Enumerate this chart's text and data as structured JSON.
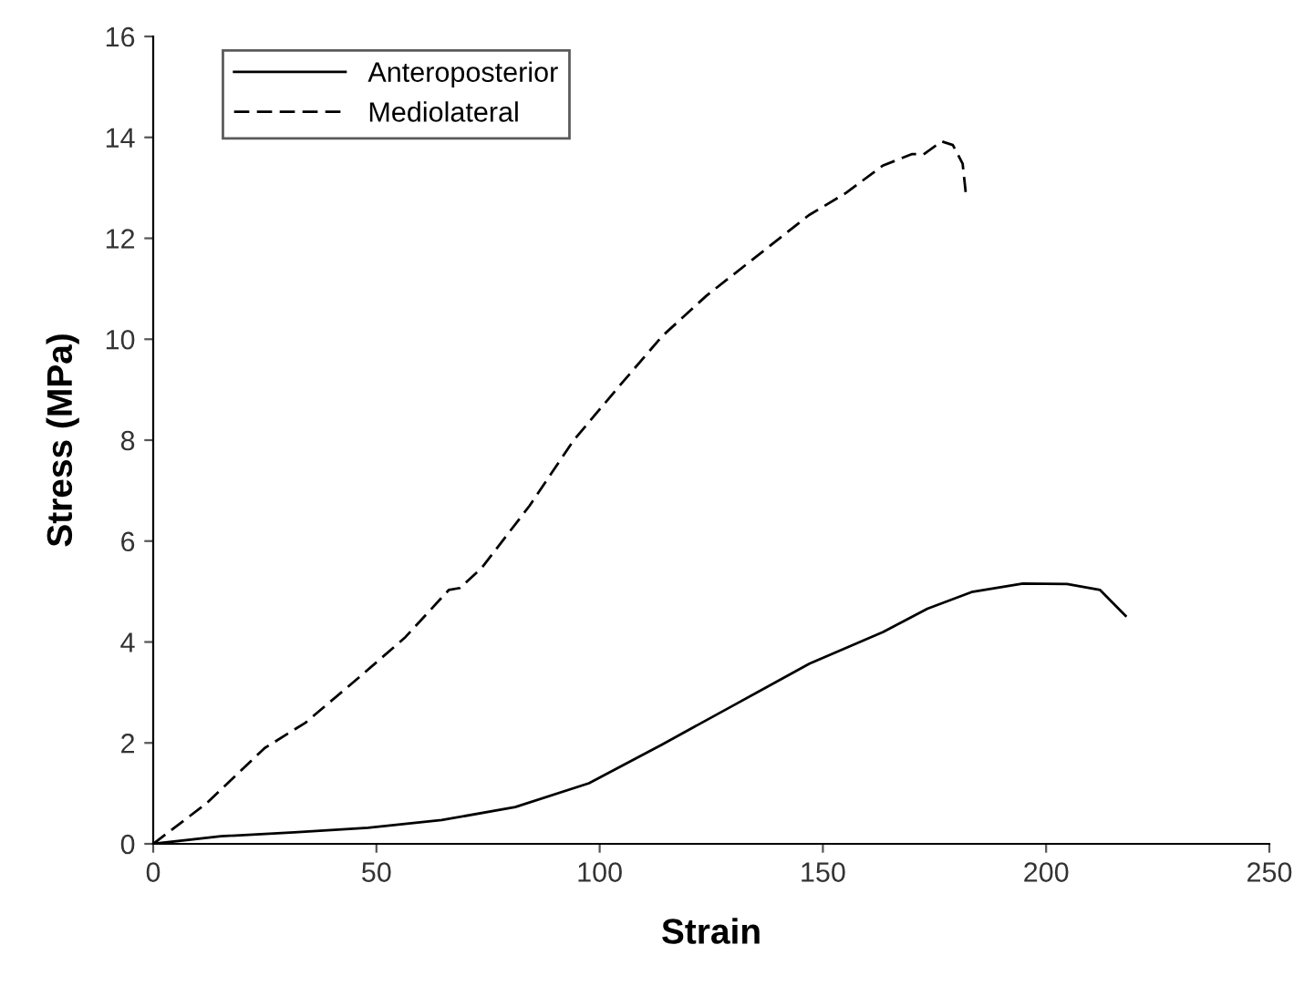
{
  "chart_data": {
    "type": "line",
    "xlabel": "Strain",
    "ylabel": "Stress (MPa)",
    "xlim": [
      0,
      250
    ],
    "xticks": [
      0,
      50,
      100,
      150,
      200,
      250
    ],
    "ylim": [
      0,
      16
    ],
    "yticks": [
      0,
      2,
      4,
      6,
      8,
      10,
      12,
      14,
      16
    ],
    "grid": false,
    "legend": "top left",
    "marker": "none",
    "series": [
      {
        "name": "Anteroposterior",
        "color": "#000000",
        "line_style": "solid",
        "x": [
          0,
          15.2,
          31.6,
          48.1,
          64.6,
          81.1,
          97.6,
          114,
          130.5,
          147,
          163.5,
          173.4,
          183.3,
          194.8,
          204.7,
          212.1,
          217.8
        ],
        "values": [
          0,
          0.15,
          0.23,
          0.32,
          0.47,
          0.73,
          1.2,
          1.97,
          2.77,
          3.57,
          4.2,
          4.66,
          4.99,
          5.16,
          5.15,
          5.03,
          4.52
        ]
      },
      {
        "name": "Mediolateral",
        "color": "#000000",
        "line_style": "dashed",
        "x": [
          0,
          11.9,
          25,
          34.1,
          44.8,
          56.3,
          66.2,
          68.7,
          73.6,
          84.3,
          94.2,
          104.1,
          114,
          123.9,
          135.4,
          146.9,
          155.2,
          163.4,
          170,
          172.5,
          176.6,
          179.1,
          181.3,
          182
        ],
        "values": [
          0,
          0.8,
          1.9,
          2.4,
          3.2,
          4.08,
          5.03,
          5.07,
          5.47,
          6.7,
          8.0,
          9.04,
          10.06,
          10.86,
          11.66,
          12.46,
          12.9,
          13.44,
          13.67,
          13.66,
          13.92,
          13.85,
          13.48,
          12.9
        ]
      }
    ]
  }
}
